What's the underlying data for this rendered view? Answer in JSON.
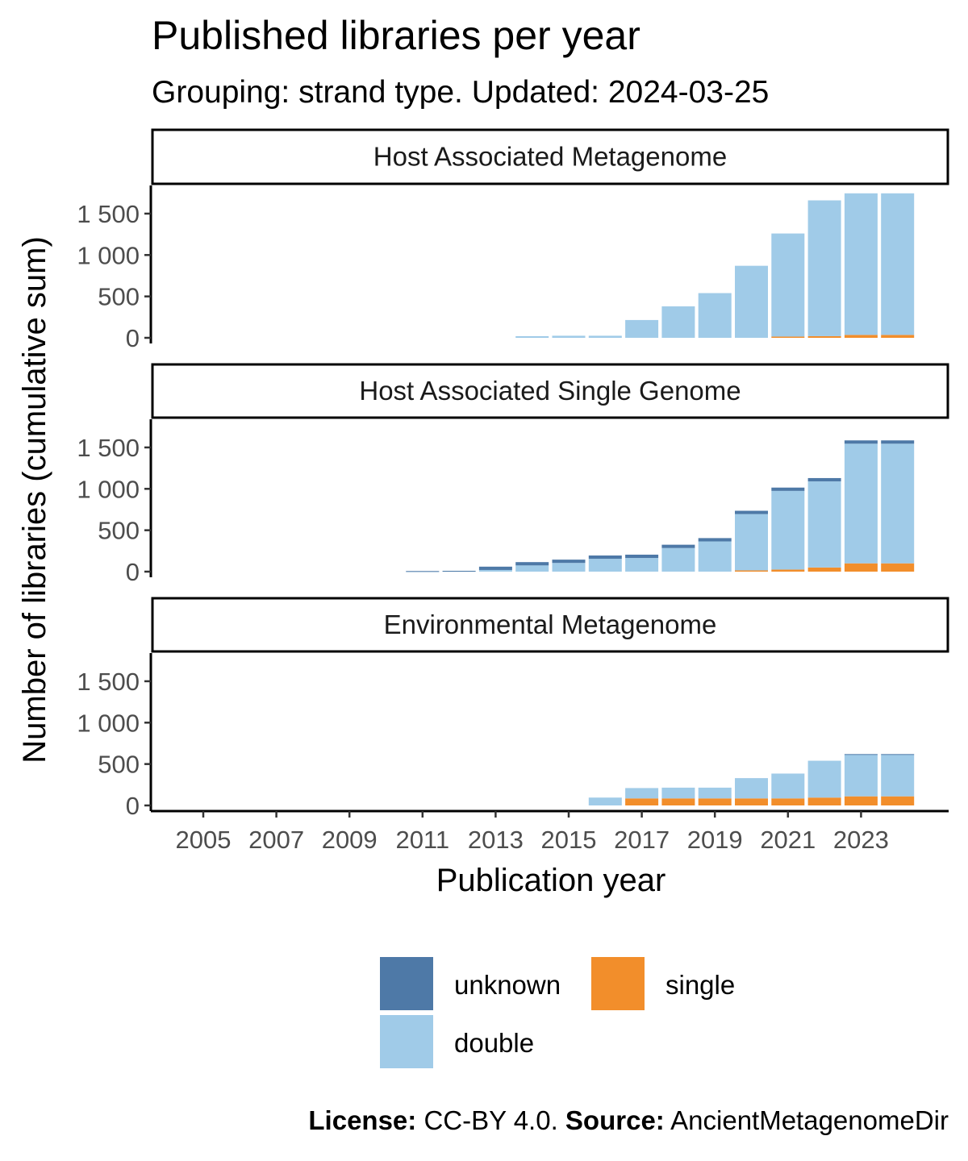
{
  "title": "Published libraries per year",
  "subtitle": "Grouping: strand type. Updated: 2024-03-25",
  "caption": {
    "license_label": "License:",
    "license_value": " CC-BY 4.0. ",
    "source_label": "Source:",
    "source_value": " AncientMetagenomeDir"
  },
  "chart_data": {
    "type": "bar",
    "stacked": true,
    "faceted": true,
    "xlabel": "Publication year",
    "ylabel": "Number of  libraries  (cumulative sum)",
    "ylim": [
      0,
      1800
    ],
    "yticks": [
      0,
      500,
      1000,
      1500
    ],
    "ytick_labels": [
      "0",
      "500",
      "1 000",
      "1 500"
    ],
    "xlim": [
      2003.6,
      2025.0
    ],
    "xticks": [
      2005,
      2007,
      2009,
      2011,
      2013,
      2015,
      2017,
      2019,
      2021,
      2023
    ],
    "grid": false,
    "legend_position": "bottom",
    "colors": {
      "unknown": "#4e79a7",
      "double": "#a0cbe8",
      "single": "#f28e2b"
    },
    "legend": [
      {
        "key": "unknown",
        "label": "unknown"
      },
      {
        "key": "single",
        "label": "single"
      },
      {
        "key": "double",
        "label": "double"
      }
    ],
    "panels": [
      {
        "name": "Host Associated Metagenome",
        "bars": [
          {
            "year": 2014,
            "single": 0,
            "double": 20,
            "unknown": 0
          },
          {
            "year": 2015,
            "single": 0,
            "double": 25,
            "unknown": 0
          },
          {
            "year": 2016,
            "single": 0,
            "double": 25,
            "unknown": 0
          },
          {
            "year": 2017,
            "single": 0,
            "double": 215,
            "unknown": 0
          },
          {
            "year": 2018,
            "single": 0,
            "double": 380,
            "unknown": 0
          },
          {
            "year": 2019,
            "single": 0,
            "double": 540,
            "unknown": 0
          },
          {
            "year": 2020,
            "single": 0,
            "double": 870,
            "unknown": 0
          },
          {
            "year": 2021,
            "single": 15,
            "double": 1245,
            "unknown": 0
          },
          {
            "year": 2022,
            "single": 20,
            "double": 1640,
            "unknown": 0
          },
          {
            "year": 2023,
            "single": 35,
            "double": 1710,
            "unknown": 0
          },
          {
            "year": 2024,
            "single": 35,
            "double": 1710,
            "unknown": 0
          }
        ]
      },
      {
        "name": "Host Associated Single Genome",
        "bars": [
          {
            "year": 2011,
            "single": 0,
            "double": 5,
            "unknown": 2
          },
          {
            "year": 2012,
            "single": 0,
            "double": 8,
            "unknown": 2
          },
          {
            "year": 2013,
            "single": 0,
            "double": 20,
            "unknown": 40
          },
          {
            "year": 2014,
            "single": 0,
            "double": 75,
            "unknown": 40
          },
          {
            "year": 2015,
            "single": 0,
            "double": 105,
            "unknown": 40
          },
          {
            "year": 2016,
            "single": 0,
            "double": 155,
            "unknown": 40
          },
          {
            "year": 2017,
            "single": 0,
            "double": 165,
            "unknown": 40
          },
          {
            "year": 2018,
            "single": 0,
            "double": 285,
            "unknown": 40
          },
          {
            "year": 2019,
            "single": 0,
            "double": 365,
            "unknown": 40
          },
          {
            "year": 2020,
            "single": 15,
            "double": 680,
            "unknown": 40
          },
          {
            "year": 2021,
            "single": 25,
            "double": 950,
            "unknown": 40
          },
          {
            "year": 2022,
            "single": 50,
            "double": 1040,
            "unknown": 40
          },
          {
            "year": 2023,
            "single": 100,
            "double": 1445,
            "unknown": 40
          },
          {
            "year": 2024,
            "single": 100,
            "double": 1445,
            "unknown": 40
          }
        ]
      },
      {
        "name": "Environmental Metagenome",
        "bars": [
          {
            "year": 2016,
            "single": 0,
            "double": 95,
            "unknown": 0
          },
          {
            "year": 2017,
            "single": 85,
            "double": 125,
            "unknown": 0
          },
          {
            "year": 2018,
            "single": 85,
            "double": 130,
            "unknown": 0
          },
          {
            "year": 2019,
            "single": 85,
            "double": 130,
            "unknown": 0
          },
          {
            "year": 2020,
            "single": 85,
            "double": 245,
            "unknown": 0
          },
          {
            "year": 2021,
            "single": 85,
            "double": 300,
            "unknown": 0
          },
          {
            "year": 2022,
            "single": 95,
            "double": 445,
            "unknown": 0
          },
          {
            "year": 2023,
            "single": 110,
            "double": 505,
            "unknown": 5
          },
          {
            "year": 2024,
            "single": 110,
            "double": 505,
            "unknown": 5
          }
        ]
      }
    ]
  }
}
